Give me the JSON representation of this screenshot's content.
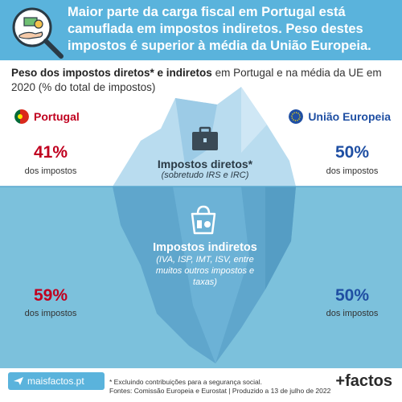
{
  "header": {
    "title": "Maior parte da carga fiscal em Portugal está camuflada em impostos indiretos. Peso destes impostos é superior à média da União Europeia."
  },
  "subtitle": {
    "bold": "Peso dos impostos diretos* e indiretos",
    "rest": " em Portugal e na média da UE em 2020 (% do total de impostos)"
  },
  "portugal": {
    "label": "Portugal",
    "direct_pct": "41%",
    "direct_label": "dos impostos",
    "indirect_pct": "59%",
    "indirect_label": "dos impostos"
  },
  "eu": {
    "label": "União Europeia",
    "direct_pct": "50%",
    "direct_label": "dos impostos",
    "indirect_pct": "50%",
    "indirect_label": "dos impostos"
  },
  "direct": {
    "title": "Impostos diretos*",
    "sub": "(sobretudo IRS e IRC)"
  },
  "indirect": {
    "title": "Impostos indiretos",
    "sub1": "(IVA, ISP, IMT, ISV, entre",
    "sub2": "muitos outros impostos e",
    "sub3": "taxas)"
  },
  "footer": {
    "site": "maisfactos.pt",
    "note1": "* Excluindo contribuições para a segurança social.",
    "note2": "Fontes: Comissão Europeia e Eurostat | Produzido a 13 de julho de 2022",
    "brand": "+factos"
  },
  "colors": {
    "header": "#5ab3dc",
    "sea": "#7cc1dc",
    "portugal_red": "#c0001f",
    "eu_blue": "#1f4fa3"
  },
  "icons": [
    "magnifier-money-icon",
    "briefcase-icon",
    "shopping-bag-icon",
    "plane-icon"
  ]
}
